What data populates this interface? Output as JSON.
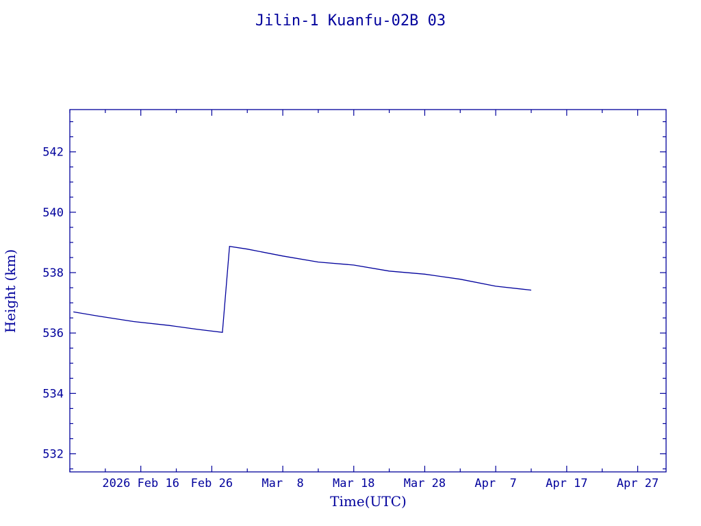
{
  "colors": {
    "ink": "#00009c",
    "background": "#ffffff"
  },
  "chart_data": {
    "type": "line",
    "title": "Jilin-1 Kuanfu-02B 03",
    "xlabel": "Time(UTC)",
    "ylabel": "Height (km)",
    "x_axis_type": "date",
    "xlim": [
      "2026-02-06",
      "2026-05-01"
    ],
    "ylim": [
      531.4,
      543.4
    ],
    "x_ticks": [
      {
        "date": "2026-02-16",
        "label": "2026 Feb 16"
      },
      {
        "date": "2026-02-26",
        "label": "Feb 26"
      },
      {
        "date": "2026-03-08",
        "label": "Mar  8"
      },
      {
        "date": "2026-03-18",
        "label": "Mar 18"
      },
      {
        "date": "2026-03-28",
        "label": "Mar 28"
      },
      {
        "date": "2026-04-07",
        "label": "Apr  7"
      },
      {
        "date": "2026-04-17",
        "label": "Apr 17"
      },
      {
        "date": "2026-04-27",
        "label": "Apr 27"
      }
    ],
    "x_minor_step_days": 5,
    "y_ticks": [
      532,
      534,
      536,
      538,
      540,
      542
    ],
    "y_minor_step": 0.5,
    "grid": false,
    "legend": "none",
    "series": [
      {
        "points": [
          [
            "2026-02-06T12:00",
            536.7
          ],
          [
            "2026-02-10",
            536.56
          ],
          [
            "2026-02-15",
            536.38
          ],
          [
            "2026-02-20",
            536.25
          ],
          [
            "2026-02-24",
            536.12
          ],
          [
            "2026-02-27T12:00",
            536.02
          ],
          [
            "2026-02-28T12:00",
            538.87
          ],
          [
            "2026-03-03",
            538.78
          ],
          [
            "2026-03-08",
            538.55
          ],
          [
            "2026-03-13",
            538.35
          ],
          [
            "2026-03-18",
            538.25
          ],
          [
            "2026-03-23",
            538.05
          ],
          [
            "2026-03-28",
            537.95
          ],
          [
            "2026-04-02",
            537.78
          ],
          [
            "2026-04-07",
            537.55
          ],
          [
            "2026-04-12",
            537.42
          ]
        ]
      }
    ]
  }
}
